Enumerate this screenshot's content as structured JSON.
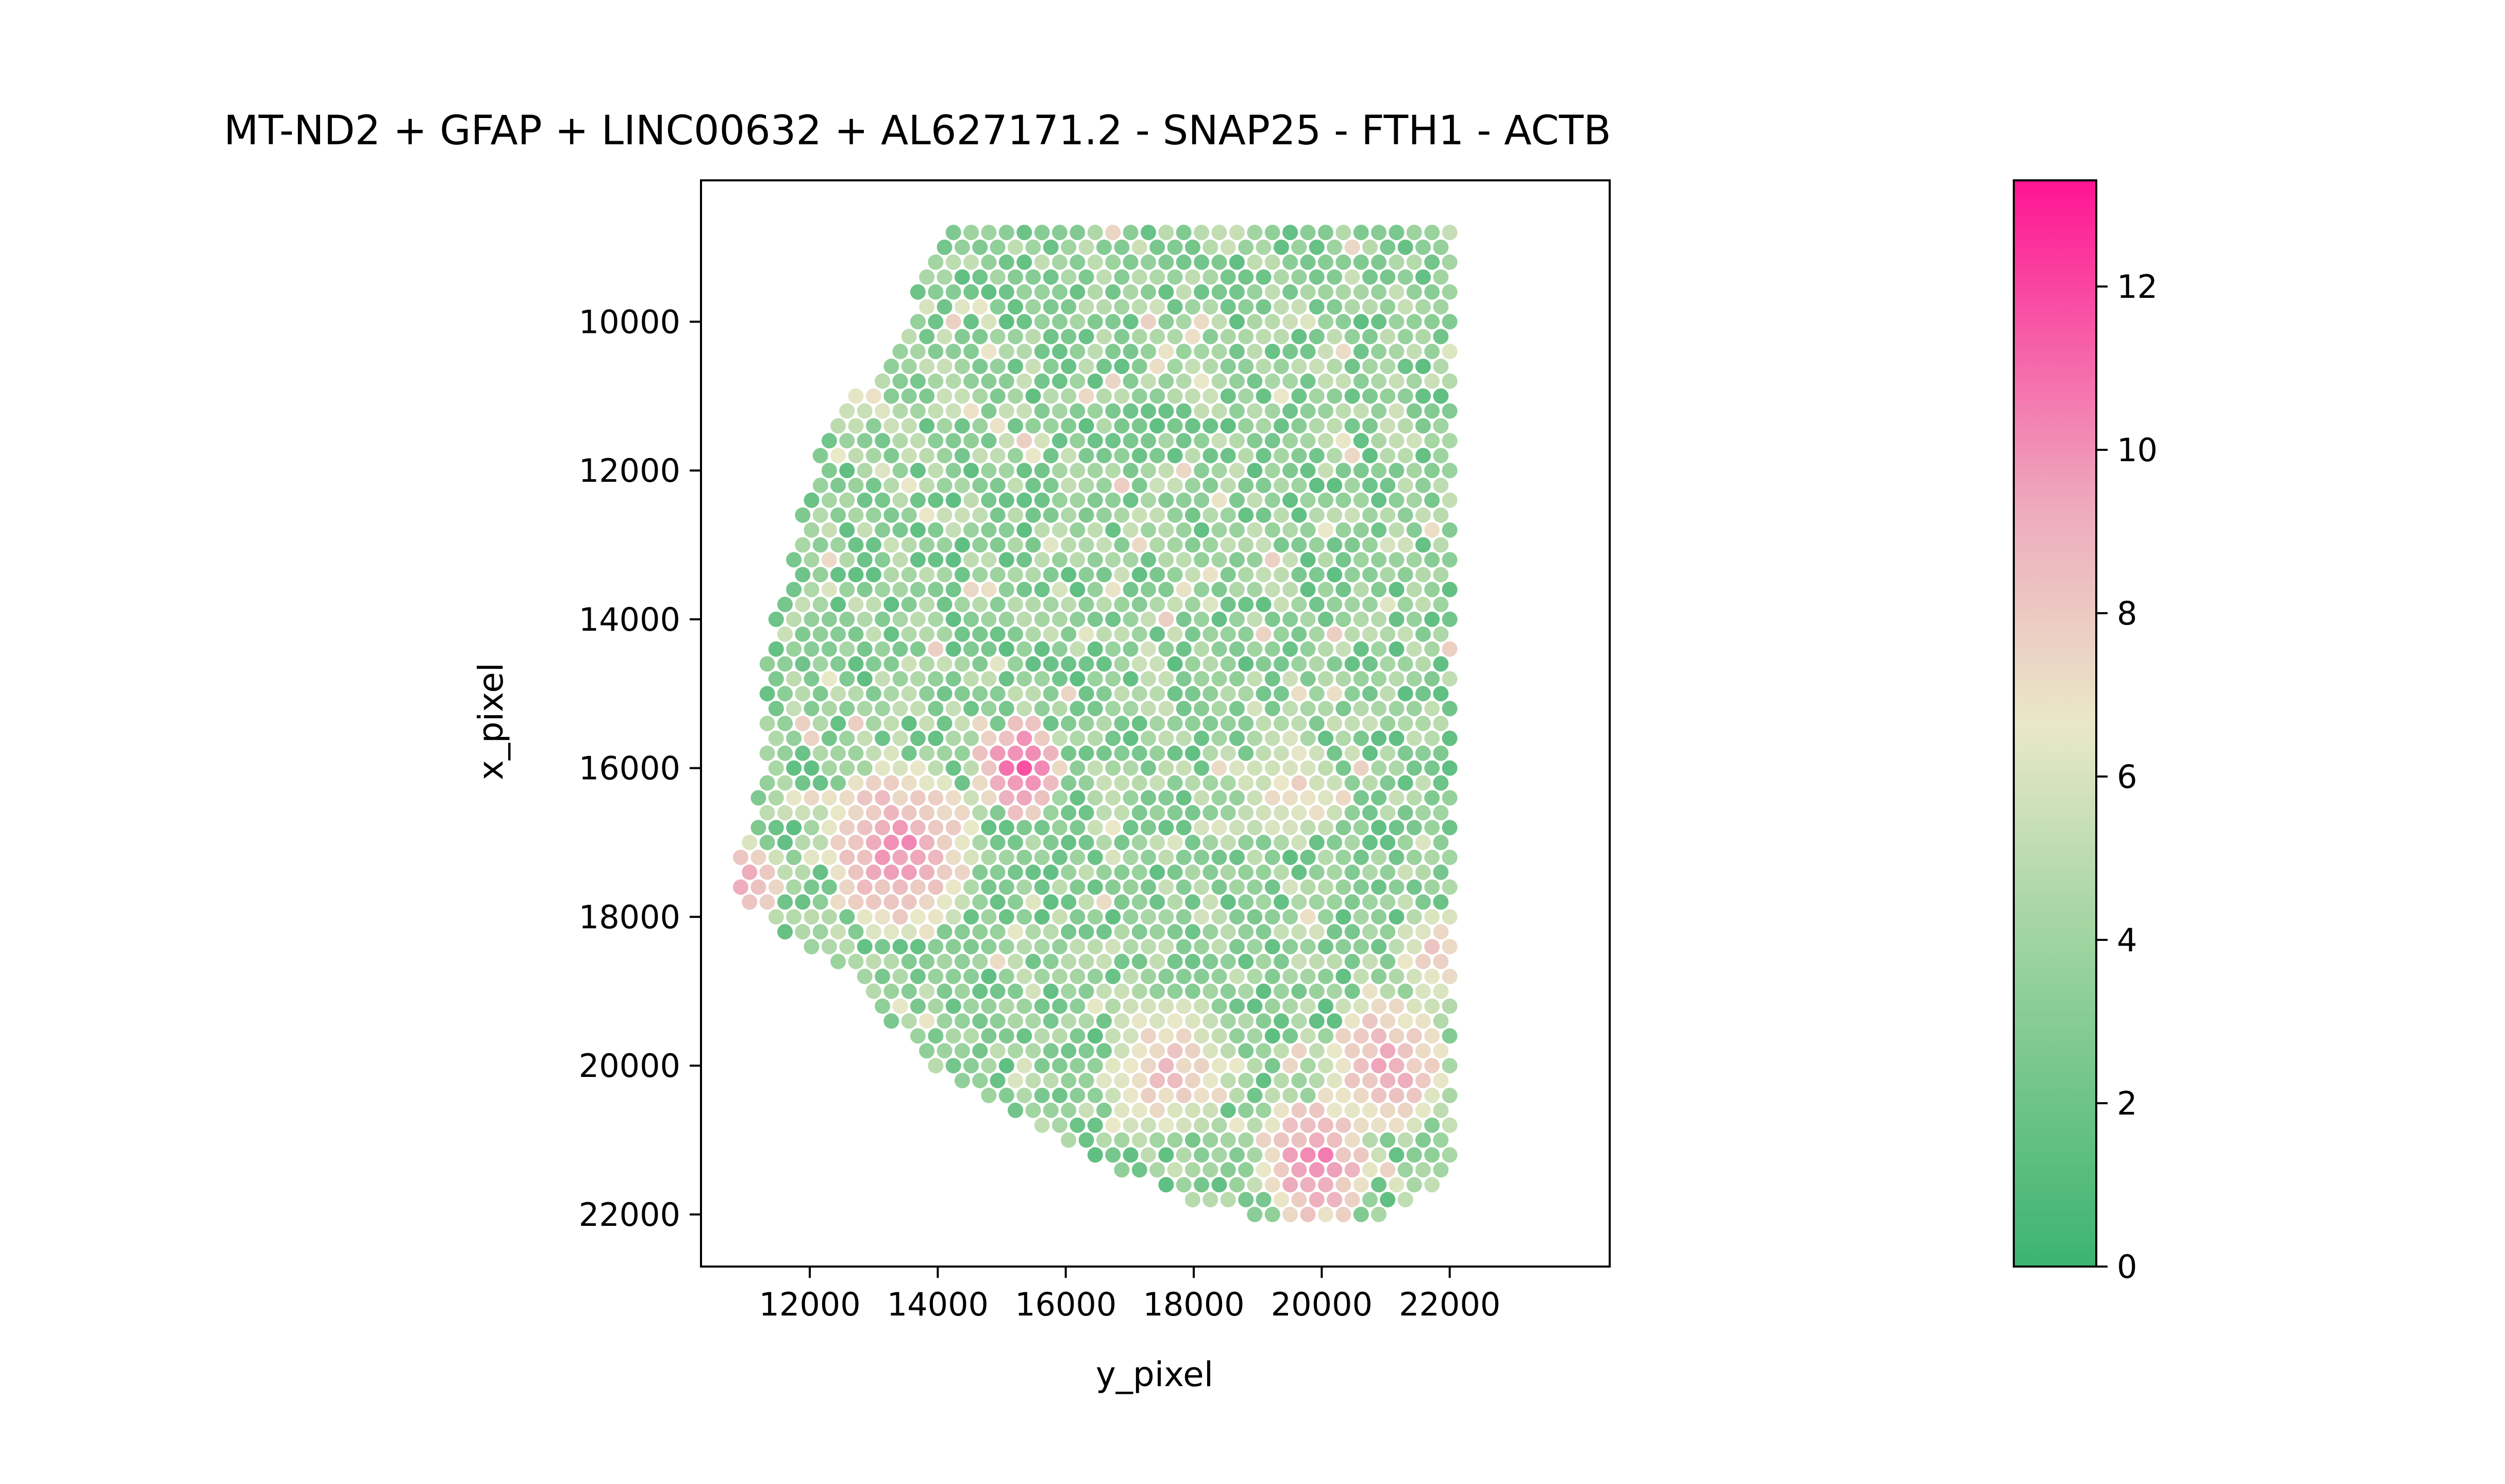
{
  "chart_data": {
    "type": "scatter",
    "title": "MT-ND2 + GFAP + LINC00632 + AL627171.2 - SNAP25 - FTH1 - ACTB",
    "xlabel": "y_pixel",
    "ylabel": "x_pixel",
    "xlim": [
      10300,
      24500
    ],
    "ylim": [
      22700,
      8100
    ],
    "y_inverted": true,
    "x_ticks": [
      12000,
      14000,
      16000,
      18000,
      20000,
      22000
    ],
    "y_ticks": [
      10000,
      12000,
      14000,
      16000,
      18000,
      20000,
      22000
    ],
    "grid": false,
    "spot_grid": {
      "row_start": 8800,
      "row_end": 22100,
      "row_step": 200,
      "col_step": 277,
      "col_end": 22000
    },
    "boundary": {
      "left_edge": [
        [
          8800,
          14000
        ],
        [
          9800,
          13600
        ],
        [
          10700,
          13000
        ],
        [
          11300,
          12400
        ],
        [
          12300,
          11900
        ],
        [
          13500,
          11600
        ],
        [
          14700,
          11300
        ],
        [
          16000,
          11300
        ],
        [
          16900,
          11000
        ],
        [
          17400,
          10800
        ],
        [
          17800,
          11000
        ],
        [
          18300,
          11700
        ],
        [
          18700,
          12500
        ],
        [
          19300,
          13100
        ],
        [
          19900,
          13800
        ],
        [
          20500,
          14800
        ],
        [
          21000,
          15800
        ],
        [
          21400,
          16700
        ],
        [
          21800,
          17900
        ],
        [
          22100,
          19300
        ]
      ],
      "right_edge": [
        [
          8800,
          22000
        ],
        [
          21500,
          22000
        ],
        [
          22100,
          21000
        ]
      ]
    },
    "hotspots": [
      {
        "x": 15300,
        "y": 16000,
        "value": 12.5,
        "radius": 700
      },
      {
        "x": 13400,
        "y": 17100,
        "value": 11.0,
        "radius": 1200
      },
      {
        "x": 11000,
        "y": 17500,
        "value": 10.5,
        "radius": 600
      },
      {
        "x": 19900,
        "y": 21300,
        "value": 11.5,
        "radius": 900
      },
      {
        "x": 21000,
        "y": 20000,
        "value": 10.5,
        "radius": 1000
      },
      {
        "x": 17600,
        "y": 20000,
        "value": 9.5,
        "radius": 1000
      },
      {
        "x": 19500,
        "y": 16300,
        "value": 8.5,
        "radius": 800
      },
      {
        "x": 21800,
        "y": 18500,
        "value": 9.0,
        "radius": 700
      }
    ],
    "value_range": [
      0,
      13.3
    ],
    "colorbar": {
      "ticks": [
        0,
        2,
        4,
        6,
        8,
        10,
        12
      ],
      "colors": [
        {
          "stop": 0.0,
          "color": "#3cb371"
        },
        {
          "stop": 0.3,
          "color": "#9fd4a0"
        },
        {
          "stop": 0.5,
          "color": "#eae8c8"
        },
        {
          "stop": 0.7,
          "color": "#eeaabd"
        },
        {
          "stop": 1.0,
          "color": "#ff1493"
        }
      ]
    }
  }
}
